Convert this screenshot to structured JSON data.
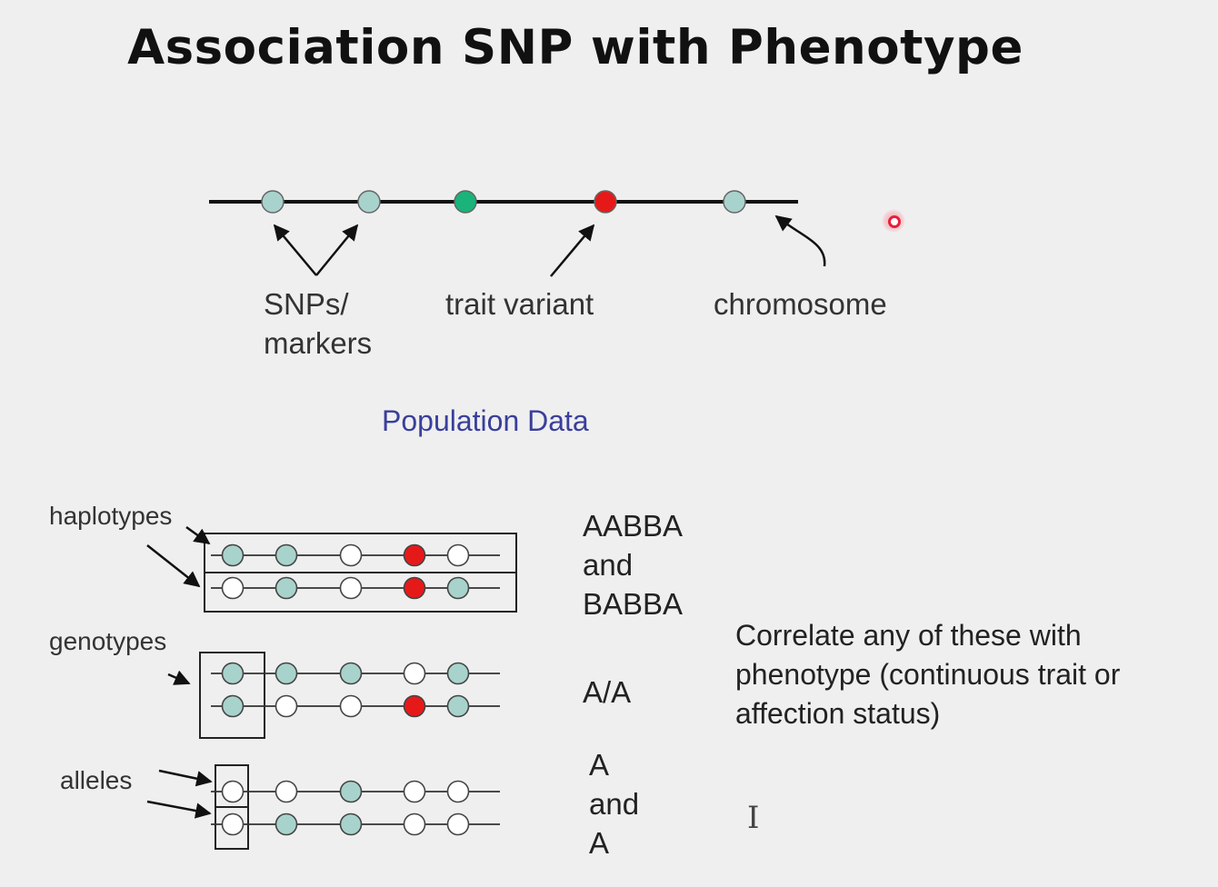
{
  "slide": {
    "title": "Association SNP with Phenotype",
    "top_labels": {
      "snps_line1": "SNPs/",
      "snps_line2": "markers",
      "trait_variant": "trait variant",
      "chromosome": "chromosome"
    },
    "section_heading": "Population Data",
    "left_labels": {
      "haplotypes": "haplotypes",
      "genotypes": "genotypes",
      "alleles": "alleles"
    },
    "haplotype_text": [
      "AABBA",
      "and",
      "BABBA"
    ],
    "genotype_text": "A/A",
    "allele_text": [
      "A",
      "and",
      "A"
    ],
    "correlate_text": [
      "Correlate any of these with",
      "phenotype (continuous trait or",
      "affection status)"
    ]
  },
  "colors": {
    "marker": "#a8d3cc",
    "trait_green": "#1ab37a",
    "trait_red": "#e61919",
    "empty": "#ffffff",
    "heading_blue": "#3a3f9b"
  },
  "rows": [
    {
      "group": "haplotypes",
      "dots": [
        "marker",
        "marker",
        "empty",
        "trait_red",
        "empty"
      ]
    },
    {
      "group": "haplotypes",
      "dots": [
        "empty",
        "marker",
        "empty",
        "trait_red",
        "marker"
      ]
    },
    {
      "group": "genotypes",
      "dots": [
        "marker",
        "marker",
        "marker",
        "empty",
        "marker"
      ]
    },
    {
      "group": "genotypes",
      "dots": [
        "marker",
        "empty",
        "empty",
        "trait_red",
        "marker"
      ]
    },
    {
      "group": "alleles",
      "dots": [
        "empty",
        "empty",
        "marker",
        "empty",
        "empty"
      ]
    },
    {
      "group": "alleles",
      "dots": [
        "empty",
        "marker",
        "marker",
        "empty",
        "empty"
      ]
    }
  ],
  "chromosome_dots": [
    "marker",
    "marker",
    "trait_green",
    "trait_red",
    "marker"
  ],
  "icons": {
    "pointer": "laser-pointer-icon",
    "text_cursor": "i-beam-cursor-icon"
  }
}
